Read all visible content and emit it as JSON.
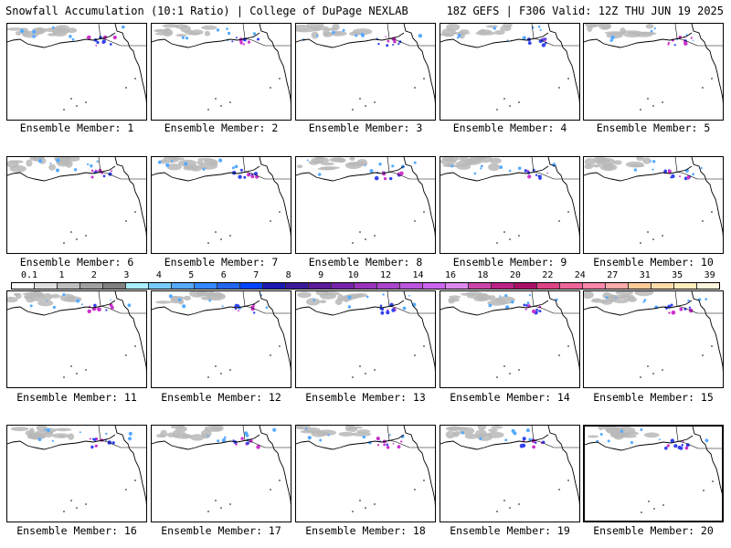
{
  "header": {
    "title": "Snowfall Accumulation (10:1 Ratio) | College of DuPage NEXLAB",
    "run_info": "18Z GEFS | F306 Valid: 12Z THU JUN 19 2025"
  },
  "panels": [
    {
      "label": "Ensemble Member: 1"
    },
    {
      "label": "Ensemble Member: 2"
    },
    {
      "label": "Ensemble Member: 3"
    },
    {
      "label": "Ensemble Member: 4"
    },
    {
      "label": "Ensemble Member: 5"
    },
    {
      "label": "Ensemble Member: 6"
    },
    {
      "label": "Ensemble Member: 7"
    },
    {
      "label": "Ensemble Member: 8"
    },
    {
      "label": "Ensemble Member: 9"
    },
    {
      "label": "Ensemble Member: 10"
    },
    {
      "label": "Ensemble Member: 11"
    },
    {
      "label": "Ensemble Member: 12"
    },
    {
      "label": "Ensemble Member: 13"
    },
    {
      "label": "Ensemble Member: 14"
    },
    {
      "label": "Ensemble Member: 15"
    },
    {
      "label": "Ensemble Member: 16"
    },
    {
      "label": "Ensemble Member: 17"
    },
    {
      "label": "Ensemble Member: 18"
    },
    {
      "label": "Ensemble Member: 19"
    },
    {
      "label": "Ensemble Member: 20"
    }
  ],
  "legend": {
    "labels": [
      "0.1",
      "1",
      "2",
      "3",
      "4",
      "5",
      "6",
      "7",
      "8",
      "9",
      "10",
      "12",
      "14",
      "16",
      "18",
      "20",
      "22",
      "24",
      "27",
      "31",
      "35",
      "39"
    ],
    "colors": [
      "#ffffff",
      "#e0e0e0",
      "#c0c0c0",
      "#a0a0a0",
      "#808080",
      "#aaeeff",
      "#77ccff",
      "#55aaff",
      "#3388ff",
      "#2266ee",
      "#0044ff",
      "#1a1ab0",
      "#3a1a9a",
      "#5a1a9a",
      "#7722aa",
      "#9933bb",
      "#aa44cc",
      "#bb55dd",
      "#cc66ee",
      "#dd88ee",
      "#cc44aa",
      "#bb2288",
      "#aa1166",
      "#dd4488",
      "#ee6699",
      "#ff88aa",
      "#ffaaaa",
      "#ffcc99",
      "#ffddaa",
      "#ffeebb",
      "#fff5dd"
    ]
  }
}
